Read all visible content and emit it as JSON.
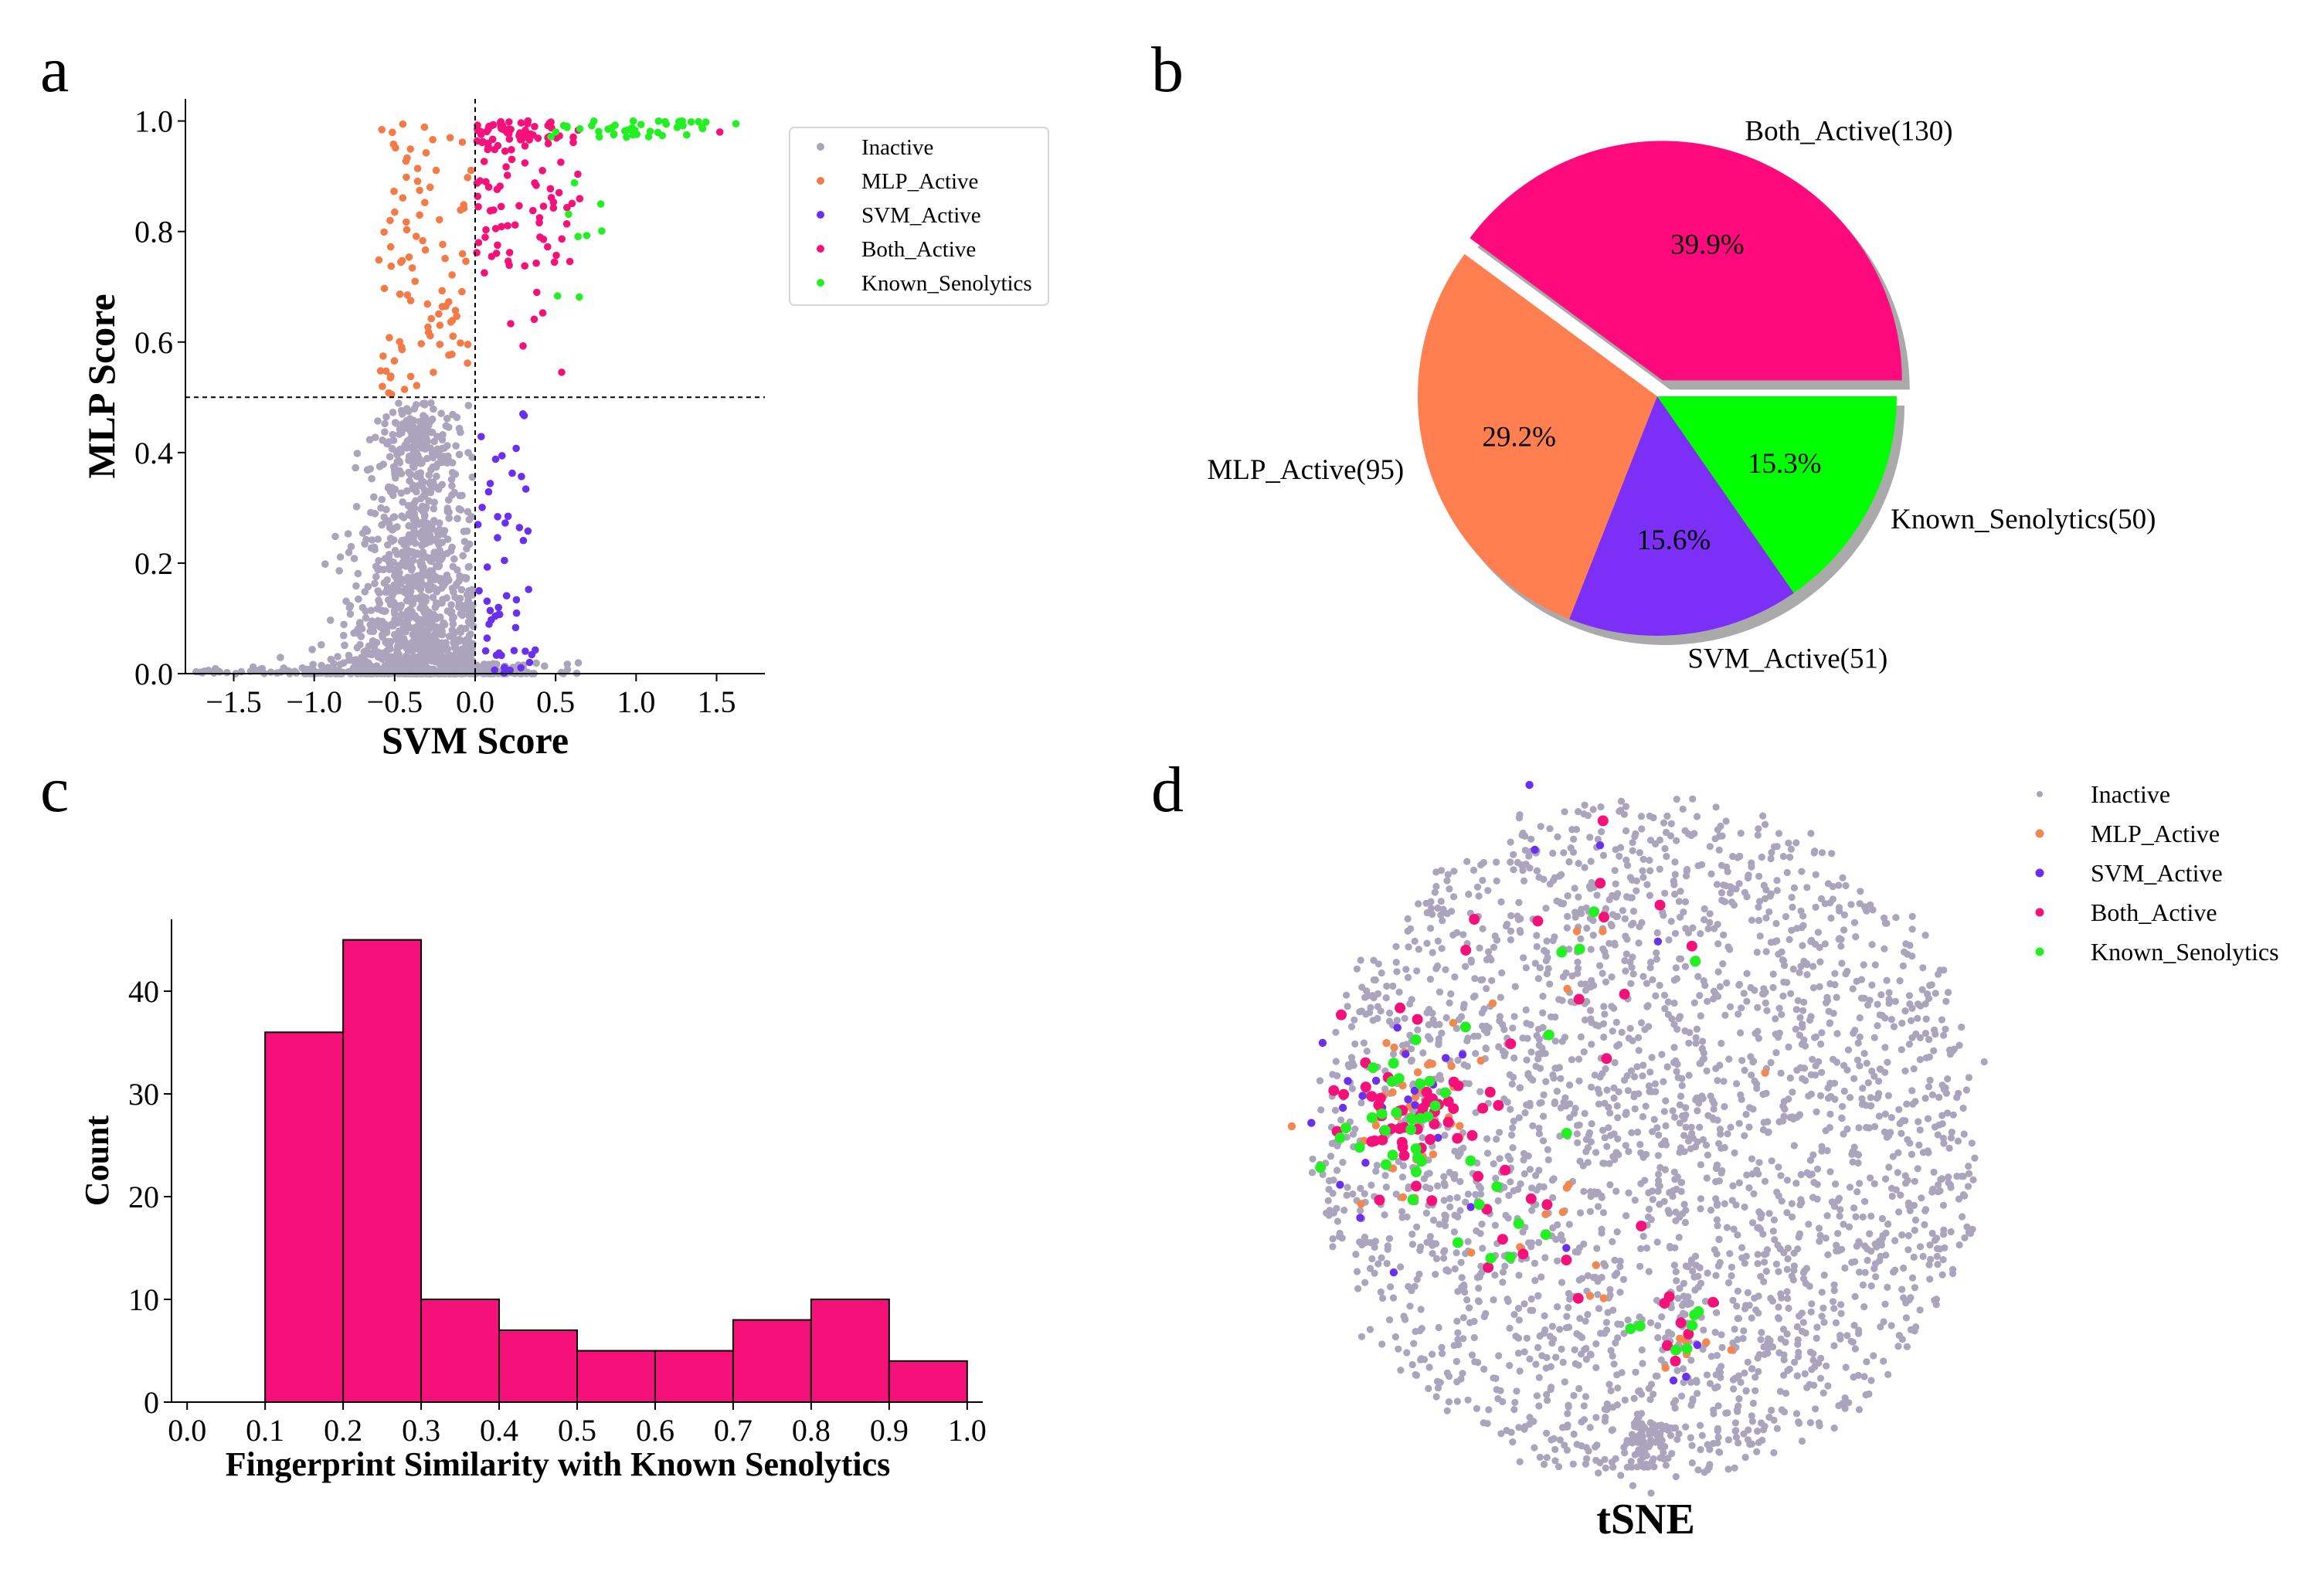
{
  "figure": {
    "panel_letters": [
      "a",
      "b",
      "c",
      "d"
    ]
  },
  "chart_data": [
    {
      "panel": "a",
      "type": "scatter",
      "title": "",
      "xlabel": "SVM Score",
      "ylabel": "MLP Score",
      "xlim": [
        -1.8,
        1.8
      ],
      "ylim": [
        0.0,
        1.04
      ],
      "xticks": [
        -1.5,
        -1.0,
        -0.5,
        0.0,
        0.5,
        1.0,
        1.5
      ],
      "xtick_labels": [
        "−1.5",
        "−1.0",
        "−0.5",
        "0.0",
        "0.5",
        "1.0",
        "1.5"
      ],
      "yticks": [
        0.0,
        0.2,
        0.4,
        0.6,
        0.8,
        1.0
      ],
      "ytick_labels": [
        "0.0",
        "0.2",
        "0.4",
        "0.6",
        "0.8",
        "1.0"
      ],
      "threshold_lines": {
        "x": 0.0,
        "y": 0.5
      },
      "legend_position": "upper-right-outside",
      "series": [
        {
          "name": "Inactive",
          "color": "#aaa4bc",
          "description": "SVM < 0 and MLP < 0.5, dense near (-0.3, 0.05)"
        },
        {
          "name": "MLP_Active",
          "color": "#f47a48",
          "description": "SVM in [-0.6, 0], MLP in [0.5, 1.0]"
        },
        {
          "name": "SVM_Active",
          "color": "#6b2ff0",
          "description": "SVM in [0, 0.4], MLP in [0, 0.5]"
        },
        {
          "name": "Both_Active",
          "color": "#f5107a",
          "description": "SVM in [0, 0.7], MLP in [0.5, 1.0]"
        },
        {
          "name": "Known_Senolytics",
          "color": "#22f022",
          "description": "SVM in [0.4, 1.6], MLP near 1.0"
        }
      ],
      "legend_labels": [
        "Inactive",
        "MLP_Active",
        "SVM_Active",
        "Both_Active",
        "Known_Senolytics"
      ]
    },
    {
      "panel": "b",
      "type": "pie",
      "title": "",
      "slices": [
        {
          "name": "Both_Active",
          "label": "Both_Active(130)",
          "count": 130,
          "percent_label": "39.9%",
          "color": "#ff0a7c",
          "exploded": true
        },
        {
          "name": "MLP_Active",
          "label": "MLP_Active(95)",
          "count": 95,
          "percent_label": "29.2%",
          "color": "#ff7f50",
          "exploded": false
        },
        {
          "name": "SVM_Active",
          "label": "SVM_Active(51)",
          "count": 51,
          "percent_label": "15.6%",
          "color": "#7b2ff7",
          "exploded": false
        },
        {
          "name": "Known_Senolytics",
          "label": "Known_Senolytics(50)",
          "count": 50,
          "percent_label": "15.3%",
          "color": "#00ff00",
          "exploded": false
        }
      ],
      "shadow": true
    },
    {
      "panel": "c",
      "type": "bar",
      "title": "",
      "xlabel": "Fingerprint Similarity with Known Senolytics",
      "ylabel": "Count",
      "bin_edges": [
        0.1,
        0.2,
        0.3,
        0.4,
        0.5,
        0.6,
        0.7,
        0.8,
        0.9,
        1.0
      ],
      "values": [
        36,
        45,
        10,
        7,
        5,
        5,
        8,
        10,
        4
      ],
      "color": "#f5107a",
      "xlim": [
        -0.02,
        1.02
      ],
      "ylim": [
        0,
        47
      ],
      "xticks": [
        0.0,
        0.1,
        0.2,
        0.3,
        0.4,
        0.5,
        0.6,
        0.7,
        0.8,
        0.9,
        1.0
      ],
      "xtick_labels": [
        "0.0",
        "0.1",
        "0.2",
        "0.3",
        "0.4",
        "0.5",
        "0.6",
        "0.7",
        "0.8",
        "0.9",
        "1.0"
      ],
      "yticks": [
        0,
        10,
        20,
        30,
        40
      ],
      "ytick_labels": [
        "0",
        "10",
        "20",
        "30",
        "40"
      ]
    },
    {
      "panel": "d",
      "type": "scatter",
      "title": "tSNE",
      "xlabel": "",
      "ylabel": "",
      "axes_visible": false,
      "legend_position": "upper-right",
      "series": [
        {
          "name": "Inactive",
          "color": "#aaa4bc"
        },
        {
          "name": "MLP_Active",
          "color": "#f4874e"
        },
        {
          "name": "SVM_Active",
          "color": "#6b2ff0"
        },
        {
          "name": "Both_Active",
          "color": "#f5107a"
        },
        {
          "name": "Known_Senolytics",
          "color": "#22f022"
        }
      ],
      "legend_labels": [
        "Inactive",
        "MLP_Active",
        "SVM_Active",
        "Both_Active",
        "Known_Senolytics"
      ]
    }
  ]
}
